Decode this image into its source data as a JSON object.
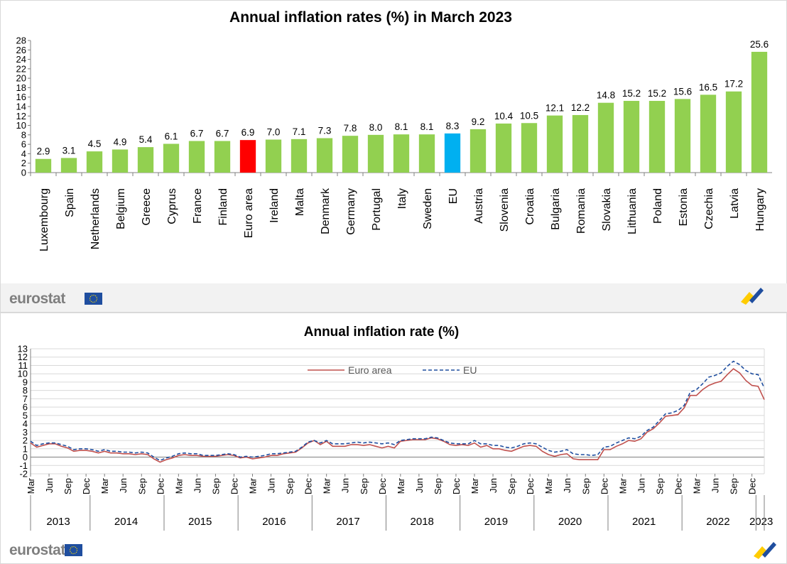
{
  "brand": {
    "name": "eurostat",
    "flag_color": "#1f4e9f",
    "flag_icon": "eu-flag-icon",
    "logo_icon": "eurostat-logo-mark-icon"
  },
  "charts": [
    {
      "type": "bar",
      "title": "Annual inflation rates (%)  in March 2023",
      "categories": [
        "Luxembourg",
        "Spain",
        "Netherlands",
        "Belgium",
        "Greece",
        "Cyprus",
        "France",
        "Finland",
        "Euro area",
        "Ireland",
        "Malta",
        "Denmark",
        "Germany",
        "Portugal",
        "Italy",
        "Sweden",
        "EU",
        "Austria",
        "Slovenia",
        "Croatia",
        "Bulgaria",
        "Romania",
        "Slovakia",
        "Lithuania",
        "Poland",
        "Estonia",
        "Czechia",
        "Latvia",
        "Hungary"
      ],
      "values": [
        2.9,
        3.1,
        4.5,
        4.9,
        5.4,
        6.1,
        6.7,
        6.7,
        6.9,
        7.0,
        7.1,
        7.3,
        7.8,
        8.0,
        8.1,
        8.1,
        8.3,
        9.2,
        10.4,
        10.5,
        12.1,
        12.2,
        14.8,
        15.2,
        15.2,
        15.6,
        16.5,
        17.2,
        25.6
      ],
      "value_labels": [
        "2.9",
        "3.1",
        "4.5",
        "4.9",
        "5.4",
        "6.1",
        "6.7",
        "6.7",
        "6.9",
        "7.0",
        "7.1",
        "7.3",
        "7.8",
        "8.0",
        "8.1",
        "8.1",
        "8.3",
        "9.2",
        "10.4",
        "10.5",
        "12.1",
        "12.2",
        "14.8",
        "15.2",
        "15.2",
        "15.6",
        "16.5",
        "17.2",
        "25.6"
      ],
      "ylim": [
        0,
        28
      ],
      "yticks": [
        0,
        2,
        4,
        6,
        8,
        10,
        12,
        14,
        16,
        18,
        20,
        22,
        24,
        26,
        28
      ],
      "colors": {
        "default": "#92d050",
        "Euro area": "#ff0000",
        "EU": "#00b0f0"
      }
    },
    {
      "type": "line",
      "title": "Annual inflation rate (%)",
      "ylim": [
        -2,
        13
      ],
      "yticks": [
        -2,
        -1,
        0,
        1,
        2,
        3,
        4,
        5,
        6,
        7,
        8,
        9,
        10,
        11,
        12,
        13
      ],
      "grid": true,
      "legend_position": "top-center",
      "month_labels": [
        "Mar",
        "Jun",
        "Sep",
        "Dec"
      ],
      "last_month_label": "Mar",
      "years": [
        "2013",
        "2014",
        "2015",
        "2016",
        "2017",
        "2018",
        "2019",
        "2020",
        "2021",
        "2022",
        "2023"
      ],
      "x_start": "2013-03",
      "x_end": "2023-03",
      "series": [
        {
          "name": "Euro area",
          "color": "#c0504d",
          "style": "solid",
          "values": [
            1.7,
            1.2,
            1.4,
            1.6,
            1.6,
            1.3,
            1.1,
            0.7,
            0.8,
            0.8,
            0.7,
            0.5,
            0.7,
            0.5,
            0.5,
            0.4,
            0.4,
            0.3,
            0.4,
            0.3,
            -0.2,
            -0.6,
            -0.3,
            -0.1,
            0.2,
            0.3,
            0.2,
            0.2,
            0.1,
            0.1,
            0.1,
            0.2,
            0.3,
            0.2,
            -0.1,
            0.0,
            -0.2,
            -0.1,
            0.0,
            0.2,
            0.2,
            0.4,
            0.5,
            0.6,
            1.1,
            1.7,
            2.0,
            1.5,
            1.9,
            1.3,
            1.3,
            1.3,
            1.5,
            1.5,
            1.4,
            1.5,
            1.3,
            1.1,
            1.3,
            1.1,
            1.9,
            2.0,
            2.1,
            2.1,
            2.1,
            2.3,
            2.2,
            1.9,
            1.5,
            1.4,
            1.5,
            1.4,
            1.7,
            1.2,
            1.4,
            1.0,
            1.0,
            0.8,
            0.7,
            1.0,
            1.3,
            1.4,
            1.3,
            0.7,
            0.3,
            0.1,
            0.3,
            0.4,
            -0.2,
            -0.3,
            -0.3,
            -0.3,
            -0.3,
            0.9,
            0.9,
            1.3,
            1.6,
            2.0,
            1.9,
            2.2,
            3.0,
            3.4,
            4.1,
            4.9,
            5.0,
            5.1,
            5.9,
            7.4,
            7.4,
            8.1,
            8.6,
            8.9,
            9.1,
            9.9,
            10.6,
            10.1,
            9.2,
            8.6,
            8.5,
            6.9
          ]
        },
        {
          "name": "EU",
          "color": "#1f4e9f",
          "style": "dashed",
          "values": [
            1.9,
            1.4,
            1.6,
            1.7,
            1.7,
            1.5,
            1.3,
            0.9,
            1.0,
            1.0,
            0.9,
            0.7,
            0.9,
            0.7,
            0.7,
            0.6,
            0.6,
            0.5,
            0.6,
            0.5,
            0.0,
            -0.4,
            -0.1,
            0.1,
            0.4,
            0.5,
            0.4,
            0.4,
            0.2,
            0.2,
            0.2,
            0.3,
            0.4,
            0.3,
            0.0,
            0.1,
            0.0,
            0.1,
            0.2,
            0.4,
            0.4,
            0.5,
            0.6,
            0.7,
            1.2,
            1.8,
            2.0,
            1.7,
            2.0,
            1.6,
            1.6,
            1.6,
            1.7,
            1.8,
            1.7,
            1.8,
            1.7,
            1.6,
            1.7,
            1.5,
            2.0,
            2.1,
            2.2,
            2.2,
            2.2,
            2.4,
            2.3,
            2.0,
            1.7,
            1.6,
            1.6,
            1.6,
            2.0,
            1.6,
            1.6,
            1.4,
            1.4,
            1.2,
            1.1,
            1.3,
            1.6,
            1.7,
            1.6,
            1.2,
            0.8,
            0.6,
            0.7,
            0.9,
            0.4,
            0.3,
            0.3,
            0.2,
            0.3,
            1.2,
            1.3,
            1.7,
            2.0,
            2.3,
            2.2,
            2.5,
            3.2,
            3.6,
            4.4,
            5.2,
            5.3,
            5.6,
            6.2,
            7.8,
            8.1,
            8.8,
            9.6,
            9.8,
            10.1,
            10.9,
            11.5,
            11.1,
            10.4,
            10.0,
            9.9,
            8.3
          ]
        }
      ]
    }
  ]
}
